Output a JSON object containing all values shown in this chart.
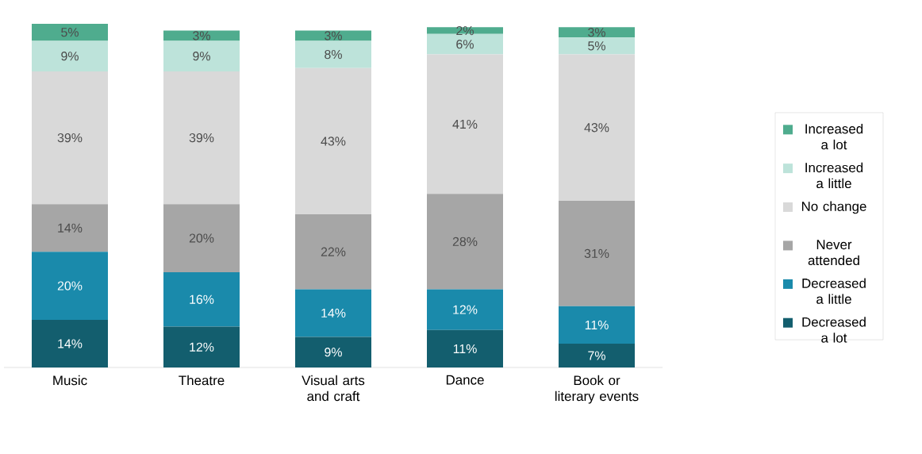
{
  "chart_data": {
    "type": "bar",
    "stacked": true,
    "categories": [
      "Music",
      "Theatre",
      "Visual arts and craft",
      "Dance",
      "Book or literary events"
    ],
    "legend": "right",
    "series": [
      {
        "name": "Decreased a lot",
        "color": "#135e6e",
        "values": [
          14,
          12,
          9,
          11,
          7
        ],
        "value_labels": [
          "14%",
          "12%",
          "9%",
          "11%",
          "7%"
        ]
      },
      {
        "name": "Decreased a little",
        "color": "#1a8aab",
        "values": [
          20,
          16,
          14,
          12,
          11
        ],
        "value_labels": [
          "20%",
          "16%",
          "14%",
          "12%",
          "11%"
        ]
      },
      {
        "name": "Never attended",
        "color": "#a6a6a6",
        "values": [
          14,
          20,
          22,
          28,
          31
        ],
        "value_labels": [
          "14%",
          "20%",
          "22%",
          "28%",
          "31%"
        ]
      },
      {
        "name": "No change",
        "color": "#d9d9d9",
        "values": [
          39,
          39,
          43,
          41,
          43
        ],
        "value_labels": [
          "39%",
          "39%",
          "43%",
          "41%",
          "43%"
        ]
      },
      {
        "name": "Increased a little",
        "color": "#bde3da",
        "values": [
          9,
          9,
          8,
          6,
          5
        ],
        "value_labels": [
          "9%",
          "9%",
          "8%",
          "6%",
          "5%"
        ]
      },
      {
        "name": "Increased a lot",
        "color": "#4fac8e",
        "values": [
          5,
          3,
          3,
          2,
          3
        ],
        "value_labels": [
          "5%",
          "3%",
          "3%",
          "2%",
          "3%"
        ]
      }
    ]
  }
}
